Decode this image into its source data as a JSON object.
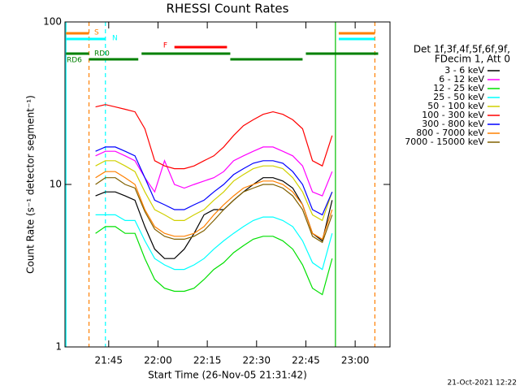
{
  "chart_data": {
    "type": "line",
    "title": "RHESSI Count Rates",
    "x_label": "Start Time (26-Nov-05 21:31:42)",
    "y_label": "Count Rate (s⁻¹ detector segment⁻¹)",
    "footer": "21-Oct-2021 12:22",
    "legend_header": [
      "Det 1f,3f,4f,5f,6f,9f,",
      "FDecim 1, Att 0"
    ],
    "log_y": true,
    "xlim": [
      "21:31:42",
      "23:10:36"
    ],
    "xticks": [
      "21:45",
      "22:00",
      "22:15",
      "22:30",
      "22:45",
      "23:00"
    ],
    "ylim": [
      1,
      100
    ],
    "yticks": [
      1,
      10,
      100
    ],
    "x": [
      "21:41",
      "21:44",
      "21:47",
      "21:50",
      "21:53",
      "21:56",
      "21:59",
      "22:02",
      "22:05",
      "22:08",
      "22:11",
      "22:14",
      "22:17",
      "22:20",
      "22:23",
      "22:26",
      "22:29",
      "22:32",
      "22:35",
      "22:38",
      "22:41",
      "22:44",
      "22:47",
      "22:50",
      "22:53"
    ],
    "series": [
      {
        "name": "3 - 6 keV",
        "color": "#000000",
        "values": [
          8.5,
          9,
          9,
          8.5,
          8,
          5.5,
          4,
          3.5,
          3.5,
          4,
          5,
          6.5,
          7,
          7,
          8,
          9,
          10,
          11,
          11,
          10.5,
          9.5,
          7.5,
          5,
          4.5,
          8
        ]
      },
      {
        "name": "6 - 12 keV",
        "color": "#ff00ff",
        "values": [
          15,
          16,
          16,
          15,
          14,
          11,
          9,
          14,
          10,
          9.5,
          10,
          10.5,
          11,
          12,
          14,
          15,
          16,
          17,
          17,
          16,
          15,
          13,
          9,
          8.5,
          12
        ]
      },
      {
        "name": "12 - 25 keV",
        "color": "#00e000",
        "values": [
          5,
          5.5,
          5.5,
          5,
          5,
          3.5,
          2.6,
          2.3,
          2.2,
          2.2,
          2.3,
          2.6,
          3,
          3.3,
          3.8,
          4.2,
          4.6,
          4.8,
          4.8,
          4.5,
          4,
          3.2,
          2.3,
          2.1,
          3.5
        ]
      },
      {
        "name": "25 - 50 keV",
        "color": "#00ffff",
        "values": [
          6.5,
          6.5,
          6.5,
          6,
          6,
          4.5,
          3.5,
          3.2,
          3,
          3,
          3.2,
          3.5,
          4,
          4.5,
          5,
          5.5,
          6,
          6.3,
          6.3,
          6,
          5.5,
          4.5,
          3.3,
          3,
          5
        ]
      },
      {
        "name": "50 - 100 keV",
        "color": "#d0d000",
        "values": [
          13,
          14,
          14,
          13,
          12,
          9,
          7,
          6.5,
          6,
          6,
          6.5,
          7,
          8,
          9,
          10.5,
          11.5,
          12.5,
          13,
          13,
          12.5,
          11,
          9,
          6.5,
          6,
          9
        ]
      },
      {
        "name": "100 - 300 keV",
        "color": "#ff0000",
        "values": [
          30,
          31,
          30,
          29,
          28,
          22,
          14,
          13,
          12.5,
          12.5,
          13,
          14,
          15,
          17,
          20,
          23,
          25,
          27,
          28,
          27,
          25,
          22,
          14,
          13,
          20
        ]
      },
      {
        "name": "300 - 800 keV",
        "color": "#0000ff",
        "values": [
          16,
          17,
          17,
          16,
          15,
          11,
          8,
          7.5,
          7,
          7,
          7.5,
          8,
          9,
          10,
          11.5,
          12.5,
          13.5,
          14,
          14,
          13.5,
          12,
          10,
          7,
          6.5,
          9
        ]
      },
      {
        "name": "800 - 7000 keV",
        "color": "#ff8000",
        "values": [
          11,
          12,
          12,
          11,
          10,
          7,
          5.5,
          5,
          4.8,
          4.8,
          5,
          5.5,
          6.5,
          7.5,
          8.5,
          9.5,
          10,
          10.5,
          10.5,
          10,
          9,
          7.5,
          5,
          4.6,
          7
        ]
      },
      {
        "name": "7000 - 15000 keV",
        "color": "#806000",
        "values": [
          10,
          11,
          11,
          10,
          9.5,
          6.8,
          5.3,
          4.8,
          4.6,
          4.6,
          4.8,
          5.2,
          6,
          7,
          8,
          9,
          9.5,
          10,
          10,
          9.5,
          8.5,
          7,
          4.8,
          4.4,
          6.5
        ]
      }
    ],
    "status_bars": [
      {
        "label": "S",
        "color": "#ff8000",
        "intervals": [
          [
            "21:32",
            "21:39"
          ],
          [
            "22:55",
            "23:06"
          ]
        ]
      },
      {
        "label": "N",
        "color": "#00ffff",
        "intervals": [
          [
            "21:32",
            "21:44"
          ],
          [
            "22:55",
            "23:06"
          ]
        ]
      },
      {
        "label": "F",
        "color": "#ff0000",
        "intervals": [
          [
            "22:05",
            "22:21"
          ]
        ]
      },
      {
        "label": "RD0",
        "color": "#008000",
        "intervals": [
          [
            "21:39",
            "21:54"
          ],
          [
            "22:22",
            "22:44"
          ]
        ]
      },
      {
        "label": "RD6",
        "color": "#008000",
        "intervals": [
          [
            "21:32",
            "21:39"
          ],
          [
            "21:55",
            "22:22"
          ],
          [
            "22:45",
            "23:07"
          ]
        ]
      }
    ],
    "vlines": [
      {
        "x": "21:32",
        "color": "#00ffff",
        "dashed": false
      },
      {
        "x": "21:39",
        "color": "#ff8000",
        "dashed": true
      },
      {
        "x": "21:44",
        "color": "#00ffff",
        "dashed": true
      },
      {
        "x": "22:54",
        "color": "#00c000",
        "dashed": false
      },
      {
        "x": "23:06",
        "color": "#ff8000",
        "dashed": true
      }
    ]
  }
}
